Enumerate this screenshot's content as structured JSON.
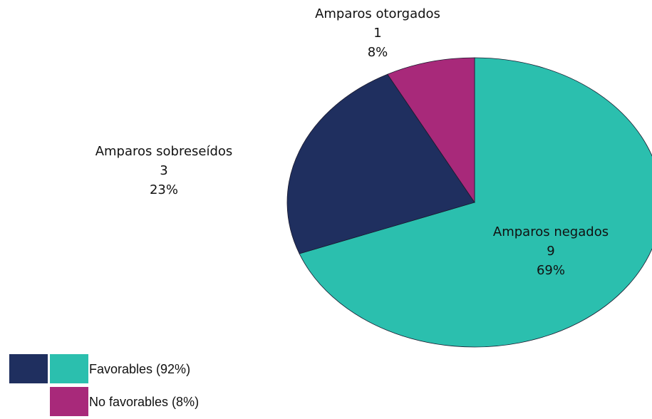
{
  "chart_data": {
    "type": "pie",
    "categories": [
      "Amparos negados",
      "Amparos sobreseídos",
      "Amparos otorgados"
    ],
    "values": [
      9,
      3,
      1
    ],
    "percent_labels": [
      "69%",
      "23%",
      "8%"
    ],
    "colors": [
      "#2bbfae",
      "#1f2f5f",
      "#a8297a"
    ],
    "legend": [
      {
        "label": "Favorables (92%)",
        "colors": [
          "#1f2f5f",
          "#2bbfae"
        ]
      },
      {
        "label": "No favorables (8%)",
        "colors": [
          "#a8297a"
        ]
      }
    ]
  }
}
